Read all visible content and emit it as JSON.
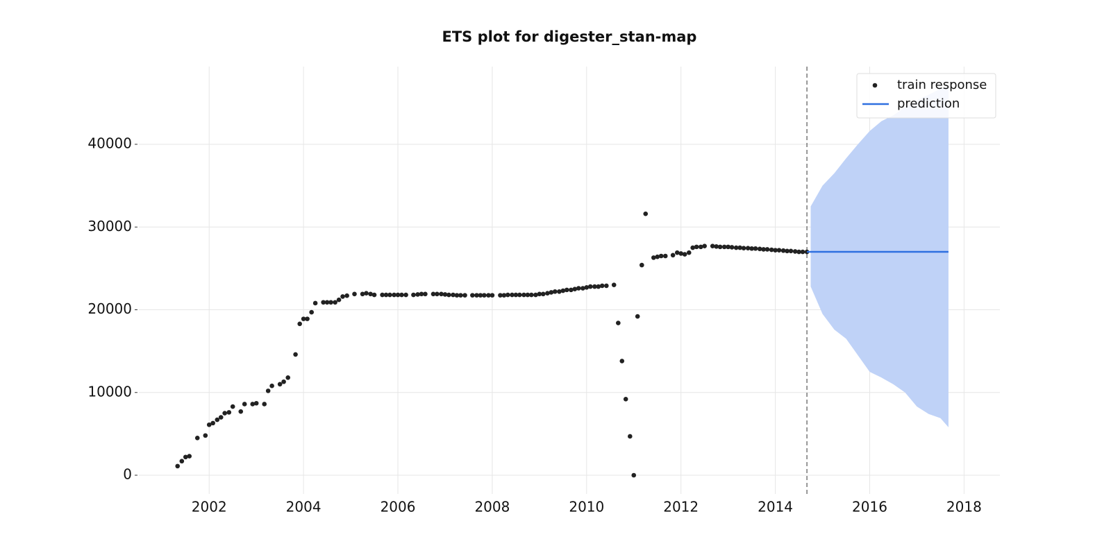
{
  "chart_data": {
    "type": "scatter",
    "title": "ETS plot for digester_stan-map",
    "xlim": [
      2000.51,
      2018.76
    ],
    "ylim": [
      -2264,
      49392
    ],
    "xticks": [
      2002,
      2004,
      2006,
      2008,
      2010,
      2012,
      2014,
      2016,
      2018
    ],
    "yticks": [
      0,
      10000,
      20000,
      30000,
      40000
    ],
    "grid": true,
    "legend": "upper right",
    "vline": 2014.67,
    "series": [
      {
        "name": "train response",
        "kind": "scatter",
        "color": "#222222",
        "x": [
          2001.33,
          2001.42,
          2001.5,
          2001.58,
          2001.75,
          2001.92,
          2002.0,
          2002.08,
          2002.17,
          2002.25,
          2002.33,
          2002.42,
          2002.5,
          2002.67,
          2002.75,
          2002.92,
          2003.0,
          2003.17,
          2003.25,
          2003.33,
          2003.5,
          2003.58,
          2003.67,
          2003.83,
          2003.92,
          2004.0,
          2004.08,
          2004.17,
          2004.25,
          2004.42,
          2004.5,
          2004.58,
          2004.67,
          2004.75,
          2004.83,
          2004.92,
          2005.08,
          2005.25,
          2005.33,
          2005.42,
          2005.5,
          2005.67,
          2005.75,
          2005.83,
          2005.92,
          2006.0,
          2006.08,
          2006.17,
          2006.33,
          2006.42,
          2006.5,
          2006.58,
          2006.75,
          2006.83,
          2006.92,
          2007.0,
          2007.08,
          2007.17,
          2007.25,
          2007.33,
          2007.42,
          2007.58,
          2007.67,
          2007.75,
          2007.83,
          2007.92,
          2008.0,
          2008.17,
          2008.25,
          2008.33,
          2008.42,
          2008.5,
          2008.58,
          2008.67,
          2008.75,
          2008.83,
          2008.92,
          2009.0,
          2009.08,
          2009.17,
          2009.25,
          2009.33,
          2009.42,
          2009.5,
          2009.58,
          2009.67,
          2009.75,
          2009.83,
          2009.92,
          2010.0,
          2010.08,
          2010.17,
          2010.25,
          2010.33,
          2010.42,
          2010.58,
          2010.67,
          2010.75,
          2010.83,
          2010.92,
          2011.0,
          2011.08,
          2011.17,
          2011.25,
          2011.42,
          2011.5,
          2011.58,
          2011.67,
          2011.83,
          2011.92,
          2012.0,
          2012.08,
          2012.17,
          2012.25,
          2012.33,
          2012.42,
          2012.5,
          2012.67,
          2012.75,
          2012.83,
          2012.92,
          2013.0,
          2013.08,
          2013.17,
          2013.25,
          2013.33,
          2013.42,
          2013.5,
          2013.58,
          2013.67,
          2013.75,
          2013.83,
          2013.92,
          2014.0,
          2014.08,
          2014.17,
          2014.25,
          2014.33,
          2014.42,
          2014.5,
          2014.58,
          2014.67
        ],
        "values": [
          1100,
          1700,
          2200,
          2300,
          4500,
          4800,
          6100,
          6300,
          6700,
          7000,
          7500,
          7600,
          8300,
          7700,
          8600,
          8600,
          8700,
          8600,
          10200,
          10800,
          11000,
          11300,
          11800,
          14600,
          18300,
          18900,
          18900,
          19700,
          20800,
          20900,
          20900,
          20900,
          20900,
          21200,
          21600,
          21700,
          21900,
          21900,
          22000,
          21900,
          21800,
          21800,
          21800,
          21800,
          21800,
          21800,
          21800,
          21800,
          21800,
          21850,
          21900,
          21900,
          21900,
          21900,
          21900,
          21850,
          21800,
          21800,
          21750,
          21750,
          21750,
          21750,
          21750,
          21750,
          21750,
          21750,
          21750,
          21750,
          21750,
          21800,
          21800,
          21800,
          21800,
          21800,
          21800,
          21800,
          21800,
          21900,
          21900,
          22000,
          22100,
          22200,
          22200,
          22300,
          22400,
          22400,
          22500,
          22600,
          22600,
          22700,
          22800,
          22800,
          22800,
          22900,
          22900,
          23000,
          18400,
          13800,
          9200,
          4700,
          0,
          19200,
          25400,
          31600,
          26300,
          26400,
          26500,
          26500,
          26600,
          26900,
          26800,
          26700,
          26900,
          27500,
          27600,
          27600,
          27700,
          27700,
          27650,
          27600,
          27600,
          27600,
          27550,
          27500,
          27500,
          27450,
          27450,
          27400,
          27400,
          27350,
          27300,
          27300,
          27250,
          27200,
          27200,
          27150,
          27100,
          27100,
          27050,
          27000,
          27000,
          27000
        ]
      },
      {
        "name": "prediction",
        "kind": "line",
        "color": "#2e6fe0",
        "x": [
          2014.67,
          2017.67
        ],
        "values": [
          27000,
          27000
        ]
      }
    ],
    "band": {
      "color": "#bfd2f7",
      "x": [
        2014.75,
        2015.0,
        2015.25,
        2015.5,
        2015.75,
        2016.0,
        2016.25,
        2016.5,
        2016.75,
        2017.0,
        2017.25,
        2017.5,
        2017.67
      ],
      "upper": [
        32500,
        35000,
        36500,
        38300,
        40000,
        41600,
        42800,
        43500,
        44500,
        45300,
        46000,
        46700,
        47000
      ],
      "lower": [
        22800,
        19500,
        17600,
        16500,
        14500,
        12500,
        11800,
        11000,
        10000,
        8300,
        7400,
        6900,
        5800
      ]
    }
  }
}
